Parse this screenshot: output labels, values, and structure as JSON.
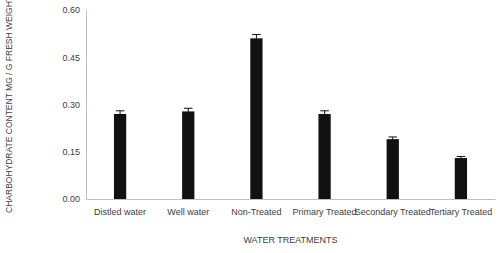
{
  "chart_data": {
    "type": "bar",
    "x_label": "WATER TREATMENTS",
    "y_label": "CHARBOHYDRATE CONTENT MG / G FRESH WEIGHT",
    "categories": [
      "Distled water",
      "Well water",
      "Non-Treated",
      "Primary Treated",
      "Secondary Treated",
      "Tertiary Treated"
    ],
    "values": [
      0.27,
      0.278,
      0.51,
      0.27,
      0.19,
      0.13
    ],
    "errors": [
      0.01,
      0.01,
      0.012,
      0.01,
      0.007,
      0.005
    ],
    "color": "#111111",
    "ylim": [
      0,
      0.6
    ],
    "yticks": [
      {
        "value": 0,
        "label": "0.00"
      },
      {
        "value": 0.15,
        "label": "0.15"
      },
      {
        "value": 0.3,
        "label": "0.30"
      },
      {
        "value": 0.45,
        "label": "0.45"
      },
      {
        "value": 0.6,
        "label": "0.60"
      }
    ],
    "grid": false
  }
}
